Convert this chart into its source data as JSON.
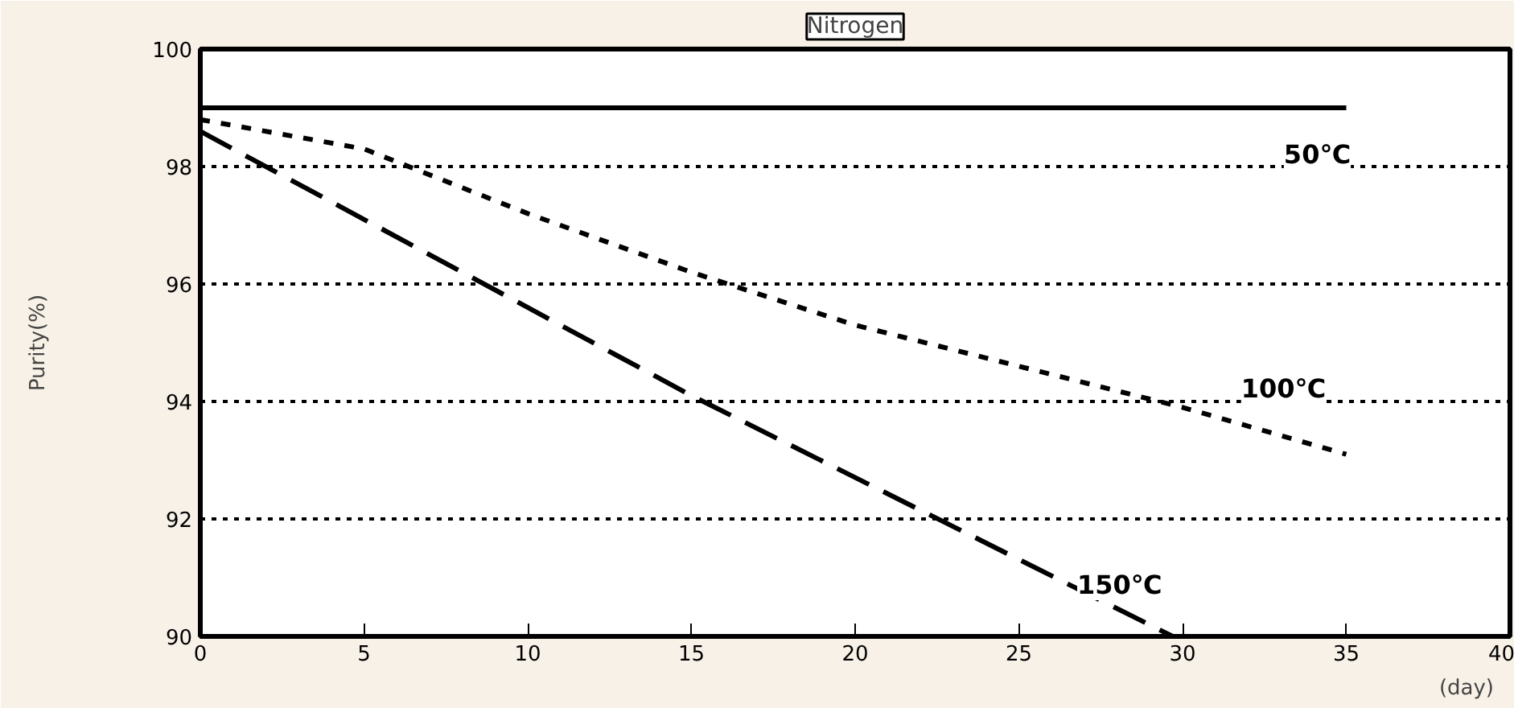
{
  "chart_data": {
    "type": "line",
    "title": "Nitrogen",
    "xlabel": "(day)",
    "ylabel": "Purity(%)",
    "xlim": [
      0,
      40
    ],
    "xticks": [
      0,
      5,
      10,
      15,
      20,
      25,
      30,
      35,
      40
    ],
    "ylim": [
      90,
      100
    ],
    "yticks": [
      90,
      92,
      94,
      96,
      98,
      100
    ],
    "grid": "y",
    "marker": "none",
    "series": [
      {
        "name": "50℃",
        "color": "#000000",
        "line_style": "solid",
        "x": [
          0,
          35
        ],
        "values": [
          99.0,
          99.0
        ]
      },
      {
        "name": "100℃",
        "color": "#000000",
        "line_style": "dotted",
        "x": [
          0,
          5,
          10,
          15,
          20,
          25,
          30,
          35
        ],
        "values": [
          98.8,
          98.3,
          97.2,
          96.2,
          95.3,
          94.6,
          93.9,
          93.1
        ]
      },
      {
        "name": "150℃",
        "color": "#000000",
        "line_style": "dashed",
        "x": [
          0,
          15,
          29.7
        ],
        "values": [
          98.6,
          94.1,
          90.0
        ]
      }
    ]
  }
}
